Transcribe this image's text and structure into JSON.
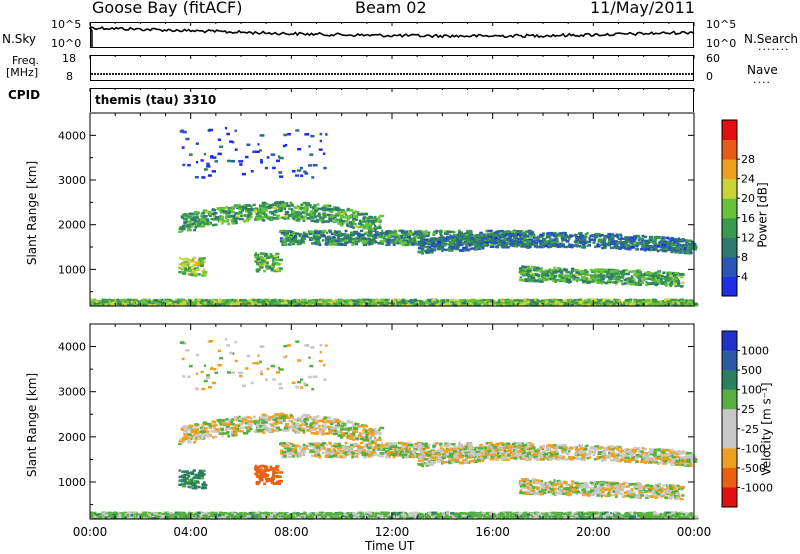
{
  "header": {
    "station": "Goose Bay (fitACF)",
    "beam": "Beam 02",
    "date": "11/May/2011"
  },
  "panels": {
    "nsky": {
      "label": "N.Sky",
      "left_ticks": [
        "10^5",
        "10^0"
      ],
      "right_ticks": [
        "10^5",
        "10^0"
      ],
      "right_label": "N.Search",
      "right_dots": "......."
    },
    "freq": {
      "label_line1": "Freq.",
      "label_line2": "[MHz]",
      "left_ticks": [
        "18",
        "8"
      ],
      "right_ticks": [
        "60",
        "0"
      ],
      "right_label": "Nave",
      "right_dots": "...."
    },
    "cpid": {
      "label": "CPID",
      "value": "themis (tau) 3310"
    }
  },
  "colors": {
    "power": [
      "#1f2ee6",
      "#2a56b8",
      "#2e7a6e",
      "#3a9a4c",
      "#66c43a",
      "#c8d43a",
      "#f0a020",
      "#e85a1a",
      "#e01010"
    ],
    "velocity": [
      "#2030c8",
      "#2c5aa8",
      "#2c8060",
      "#55b040",
      "#c8c8c8",
      "#c8c8c8",
      "#f0a020",
      "#e86010",
      "#e01010"
    ]
  },
  "chart_data": [
    {
      "type": "heatmap",
      "title": "Power",
      "xlabel": "Time UT",
      "ylabel": "Slant Range [km]",
      "x_ticks": [
        "00:00",
        "04:00",
        "08:00",
        "12:00",
        "16:00",
        "20:00",
        "00:00"
      ],
      "y_ticks": [
        "1000",
        "2000",
        "3000",
        "4000"
      ],
      "ylim": [
        180,
        4500
      ],
      "colorbar": {
        "label": "Power [dB]",
        "ticks": [
          "4",
          "8",
          "12",
          "16",
          "20",
          "24",
          "28"
        ],
        "range": [
          0,
          30
        ]
      },
      "echo_bands": [
        {
          "t_start": 3.5,
          "t_end": 11.5,
          "range_center": 2050,
          "range_width": 250,
          "value": 12
        },
        {
          "t_start": 7.5,
          "t_end": 17.5,
          "range_center": 1700,
          "range_width": 200,
          "value": 10
        },
        {
          "t_start": 13.0,
          "t_end": 24.0,
          "range_center": 1500,
          "range_width": 200,
          "value": 8
        },
        {
          "t_start": 17.0,
          "t_end": 23.5,
          "range_center": 800,
          "range_width": 200,
          "value": 12
        },
        {
          "t_start": 3.5,
          "t_end": 4.5,
          "range_center": 1050,
          "range_width": 250,
          "value": 16
        },
        {
          "t_start": 6.5,
          "t_end": 7.5,
          "range_center": 1150,
          "range_width": 250,
          "value": 14
        },
        {
          "t_start": 0.0,
          "t_end": 24.0,
          "range_center": 250,
          "range_width": 80,
          "value": 14
        },
        {
          "t_start": 3.5,
          "t_end": 9.5,
          "range_center": 3600,
          "range_width": 700,
          "value": 4
        }
      ]
    },
    {
      "type": "heatmap",
      "title": "Velocity",
      "xlabel": "Time UT",
      "ylabel": "Slant Range [km]",
      "x_ticks": [
        "00:00",
        "04:00",
        "08:00",
        "12:00",
        "16:00",
        "20:00",
        "00:00"
      ],
      "y_ticks": [
        "1000",
        "2000",
        "3000",
        "4000"
      ],
      "ylim": [
        180,
        4500
      ],
      "colorbar": {
        "label": "Velocity [m s⁻¹]",
        "ticks": [
          "1000",
          "500",
          "100",
          "25",
          "-25",
          "-100",
          "-500",
          "-1000"
        ]
      },
      "echo_bands": [
        {
          "t_start": 3.5,
          "t_end": 11.5,
          "range_center": 2050,
          "range_width": 250,
          "value": 0
        },
        {
          "t_start": 7.5,
          "t_end": 17.5,
          "range_center": 1700,
          "range_width": 200,
          "value": 0
        },
        {
          "t_start": 13.0,
          "t_end": 24.0,
          "range_center": 1500,
          "range_width": 200,
          "value": 0
        },
        {
          "t_start": 17.0,
          "t_end": 23.5,
          "range_center": 800,
          "range_width": 200,
          "value": 0
        },
        {
          "t_start": 3.5,
          "t_end": 4.5,
          "range_center": 1050,
          "range_width": 250,
          "value": 150
        },
        {
          "t_start": 6.5,
          "t_end": 7.5,
          "range_center": 1150,
          "range_width": 250,
          "value": -200
        },
        {
          "t_start": 0.0,
          "t_end": 24.0,
          "range_center": 250,
          "range_width": 80,
          "value": 50
        },
        {
          "t_start": 3.5,
          "t_end": 9.5,
          "range_center": 3600,
          "range_width": 700,
          "value": 0
        }
      ]
    }
  ]
}
